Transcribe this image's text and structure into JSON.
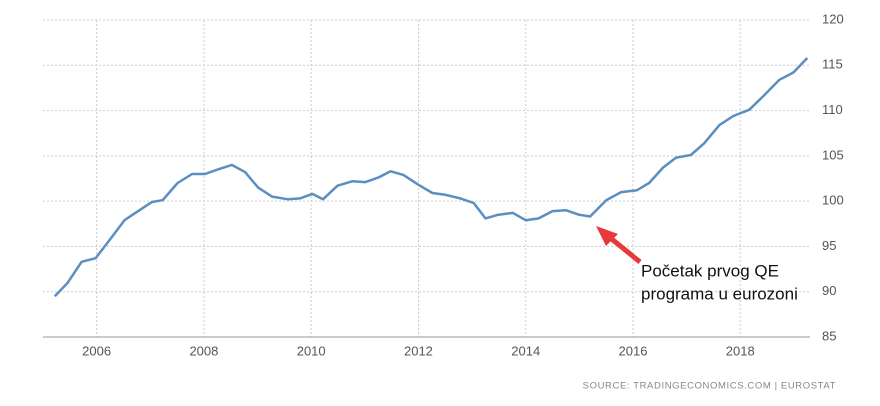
{
  "chart_data": {
    "type": "line",
    "x": [
      2005.22,
      2005.46,
      2005.72,
      2005.98,
      2006.24,
      2006.52,
      2006.8,
      2007.03,
      2007.23,
      2007.51,
      2007.78,
      2008.02,
      2008.26,
      2008.52,
      2008.77,
      2009.01,
      2009.27,
      2009.57,
      2009.79,
      2010.02,
      2010.22,
      2010.49,
      2010.77,
      2011.01,
      2011.25,
      2011.48,
      2011.72,
      2012.0,
      2012.26,
      2012.5,
      2012.78,
      2013.03,
      2013.25,
      2013.49,
      2013.76,
      2014.0,
      2014.24,
      2014.5,
      2014.75,
      2014.99,
      2015.2,
      2015.5,
      2015.78,
      2016.07,
      2016.3,
      2016.56,
      2016.8,
      2017.08,
      2017.33,
      2017.61,
      2017.87,
      2018.17,
      2018.43,
      2018.73,
      2018.99,
      2019.25
    ],
    "series": [
      {
        "color": "#5b8ec1",
        "values": [
          89.5,
          91.0,
          93.3,
          93.7,
          95.7,
          97.9,
          99.0,
          99.9,
          100.1,
          102.0,
          103.0,
          103.0,
          103.5,
          104.0,
          103.2,
          101.5,
          100.5,
          100.2,
          100.3,
          100.8,
          100.2,
          101.7,
          102.2,
          102.1,
          102.6,
          103.3,
          102.9,
          101.8,
          100.9,
          100.7,
          100.3,
          99.8,
          98.1,
          98.5,
          98.7,
          97.9,
          98.1,
          98.9,
          99.0,
          98.5,
          98.3,
          100.1,
          101.0,
          101.2,
          102.0,
          103.7,
          104.8,
          105.1,
          106.4,
          108.4,
          109.4,
          110.1,
          111.6,
          113.4,
          114.2,
          115.8
        ]
      }
    ],
    "xlim": [
      2005,
      2019.3
    ],
    "xticks": [
      2006,
      2008,
      2010,
      2012,
      2014,
      2016,
      2018
    ],
    "ylim": [
      85,
      120
    ],
    "yticks": [
      85,
      90,
      95,
      100,
      105,
      110,
      115,
      120
    ],
    "grid": true,
    "annotation": [
      "Početak prvog QE",
      "programa u eurozoni"
    ],
    "source": "SOURCE: TRADINGECONOMICS.COM | EUROSTAT"
  }
}
